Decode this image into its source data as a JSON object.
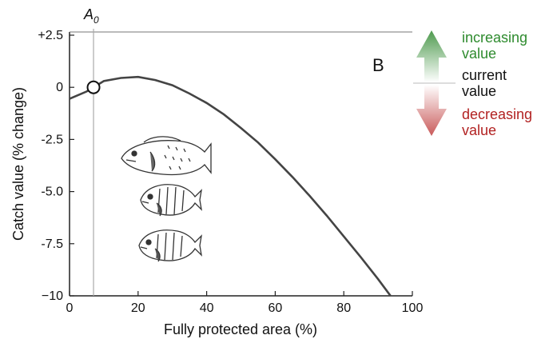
{
  "chart_data": {
    "type": "line",
    "xlabel": "Fully protected area (%)",
    "ylabel": "Catch value (% change)",
    "xlim": [
      0,
      100
    ],
    "ylim": [
      -10,
      2.5
    ],
    "x_ticks": [
      0,
      20,
      40,
      60,
      80,
      100
    ],
    "x_tick_labels": [
      "0",
      "20",
      "40",
      "60",
      "80",
      "100"
    ],
    "y_ticks": [
      2.5,
      0,
      -2.5,
      -5,
      -7.5,
      -10
    ],
    "y_tick_labels": [
      "+2.5",
      "0",
      "-2.5",
      "-5.0",
      "-7.5",
      "−10"
    ],
    "grid": false,
    "panel_label": "B",
    "series": [
      {
        "color": "#444444",
        "x": [
          0,
          5,
          7,
          10,
          15,
          20,
          25,
          30,
          35,
          40,
          45,
          50,
          55,
          60,
          65,
          70,
          75,
          80,
          85,
          90,
          95,
          100
        ],
        "y": [
          -0.55,
          -0.2,
          0.0,
          0.3,
          0.45,
          0.5,
          0.35,
          0.1,
          -0.3,
          -0.75,
          -1.3,
          -1.95,
          -2.65,
          -3.45,
          -4.3,
          -5.2,
          -6.15,
          -7.15,
          -8.15,
          -9.2,
          -10.3,
          -11.4
        ]
      }
    ],
    "reference_line": {
      "x": 7,
      "label_main": "A",
      "label_sub": "0"
    },
    "current_point": {
      "x": 7,
      "y": 0
    },
    "legend": {
      "position": "right",
      "up_text_1": "increasing",
      "up_text_2": "value",
      "mid_text_1": "current",
      "mid_text_2": "value",
      "down_text_1": "decreasing",
      "down_text_2": "value",
      "up_color": "#4e9a4e",
      "down_color": "#c95a5a",
      "up_text_color": "#2e8b2e",
      "down_text_color": "#b22222",
      "mid_text_color": "#111111"
    },
    "icons": [
      "grouper-fish-icon",
      "seabream-fish-icon",
      "seabream-fish-icon"
    ]
  }
}
